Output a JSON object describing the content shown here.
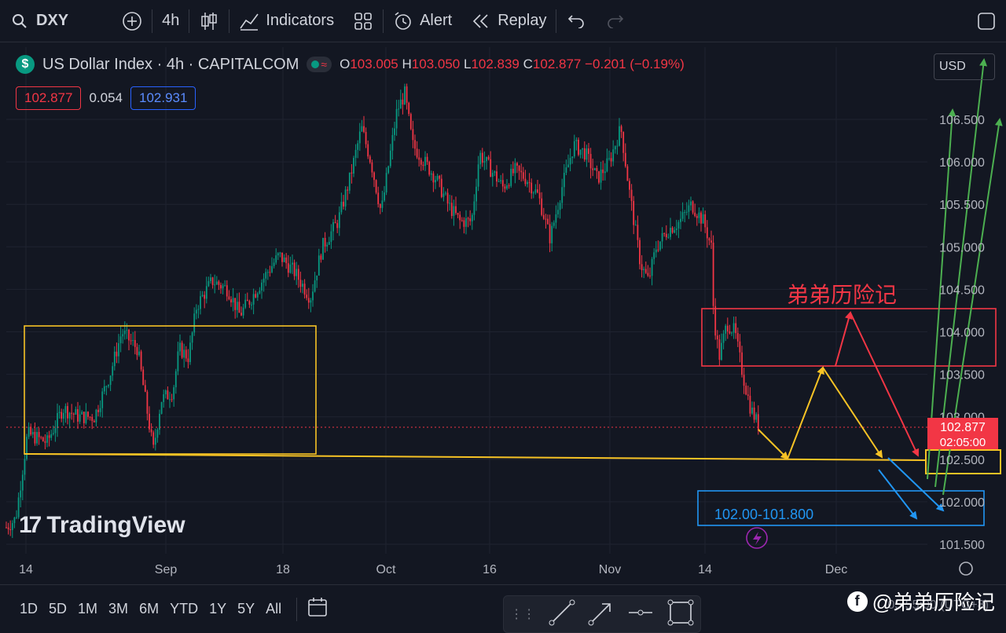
{
  "toolbar": {
    "symbol": "DXY",
    "interval": "4h",
    "indicators_label": "Indicators",
    "alert_label": "Alert",
    "replay_label": "Replay"
  },
  "legend": {
    "title": "US Dollar Index · 4h · CAPITALCOM",
    "open_label": "O",
    "open": "103.005",
    "high_label": "H",
    "high": "103.050",
    "low_label": "L",
    "low": "102.839",
    "close_label": "C",
    "close": "102.877",
    "change": "−0.201 (−0.19%)",
    "bid": "102.877",
    "spread": "0.054",
    "ask": "102.931"
  },
  "currency_button": "USD",
  "price_axis": {
    "labels": [
      "106.500",
      "106.000",
      "105.500",
      "105.000",
      "104.500",
      "104.000",
      "103.500",
      "103.000",
      "102.500",
      "102.000",
      "101.500"
    ],
    "current_price": "102.877",
    "countdown": "02:05:00"
  },
  "time_axis": {
    "labels": [
      "14",
      "Sep",
      "18",
      "Oct",
      "16",
      "Nov",
      "14",
      "Dec"
    ]
  },
  "annotations": {
    "title_text": "弟弟历险记",
    "target_zone_label": "102.00-101.800"
  },
  "branding": {
    "tradingview": "TradingView",
    "watermark": "@弟弟历险记",
    "timezone": "05:55:00 (UTC+8)"
  },
  "date_ranges": [
    "1D",
    "5D",
    "1M",
    "3M",
    "6M",
    "YTD",
    "1Y",
    "5Y",
    "All"
  ],
  "colors": {
    "up": "#089981",
    "down": "#f23645",
    "background": "#131722",
    "yellow": "#f7c325",
    "blue": "#2196f3",
    "green": "#4caf50"
  },
  "chart_data": {
    "type": "candlestick",
    "ylim": [
      101.4,
      106.8
    ],
    "x": [
      "Aug 10",
      "Aug 14",
      "Aug 18",
      "Aug 22",
      "Aug 26",
      "Aug 30",
      "Sep 3",
      "Sep 7",
      "Sep 11",
      "Sep 15",
      "Sep 19",
      "Sep 23",
      "Sep 27",
      "Oct 1",
      "Oct 5",
      "Oct 9",
      "Oct 13",
      "Oct 17",
      "Oct 21",
      "Oct 25",
      "Oct 29",
      "Nov 2",
      "Nov 6",
      "Nov 10",
      "Nov 14",
      "Nov 18",
      "Nov 22"
    ],
    "close": [
      101.7,
      102.7,
      103.0,
      103.2,
      103.9,
      102.8,
      103.8,
      104.7,
      104.3,
      104.2,
      105.0,
      104.6,
      105.9,
      106.6,
      106.2,
      105.4,
      105.3,
      106.0,
      105.6,
      105.0,
      106.2,
      106.0,
      104.6,
      105.5,
      105.3,
      103.9,
      102.88
    ]
  }
}
